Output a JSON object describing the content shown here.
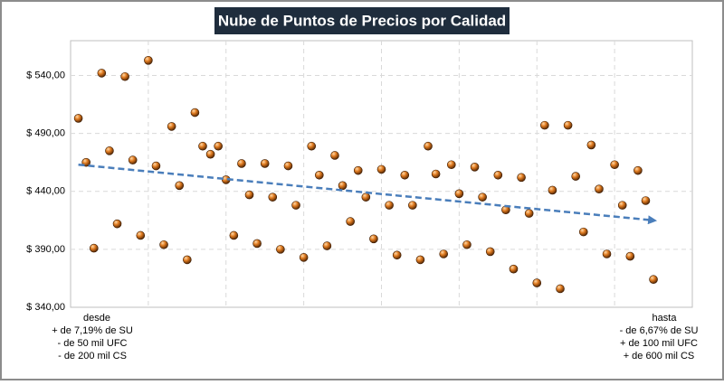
{
  "chart_data": {
    "type": "scatter",
    "title": "Nube de Puntos de Precios por Calidad",
    "x": [
      1,
      2,
      3,
      4,
      5,
      6,
      7,
      8,
      9,
      10,
      11,
      12,
      13,
      14,
      15,
      16,
      17,
      18,
      19,
      20,
      21,
      22,
      23,
      24,
      25,
      26,
      27,
      28,
      29,
      30,
      31,
      32,
      33,
      34,
      35,
      36,
      37,
      38,
      39,
      40,
      41,
      42,
      43,
      44,
      45,
      46,
      47,
      48,
      49,
      50,
      51,
      52,
      53,
      54,
      55,
      56,
      57,
      58,
      59,
      60,
      61,
      62,
      63,
      64,
      65,
      66,
      67,
      68,
      69,
      70,
      71,
      72,
      73,
      74,
      75
    ],
    "series": [
      {
        "color": "#e07b20",
        "values": [
          503,
          465,
          391,
          542,
          475,
          412,
          539,
          467,
          402,
          553,
          462,
          394,
          496,
          445,
          381,
          508,
          479,
          472,
          479,
          450,
          402,
          464,
          437,
          395,
          464,
          435,
          390,
          462,
          428,
          383,
          479,
          454,
          393,
          471,
          445,
          414,
          458,
          435,
          399,
          459,
          428,
          385,
          454,
          428,
          381,
          479,
          455,
          386,
          463,
          438,
          394,
          461,
          435,
          388,
          454,
          424,
          373,
          452,
          421,
          361,
          497,
          441,
          356,
          497,
          453,
          405,
          480,
          442,
          386,
          463,
          428,
          384,
          458,
          432,
          364
        ]
      }
    ],
    "trendline": {
      "x": [
        1,
        75
      ],
      "values": [
        463,
        415
      ],
      "color": "#4a7ebb"
    },
    "xlim": [
      0,
      80
    ],
    "xticks": [
      10,
      20,
      30,
      40,
      50,
      60,
      70
    ],
    "ylim": [
      340,
      570
    ],
    "yticks": [
      {
        "value": 340,
        "label": "$ 340,00"
      },
      {
        "value": 390,
        "label": "$ 390,00"
      },
      {
        "value": 440,
        "label": "$ 440,00"
      },
      {
        "value": 490,
        "label": "$ 490,00"
      },
      {
        "value": 540,
        "label": "$ 540,00"
      }
    ],
    "grid": true,
    "annotations": {
      "left": [
        "desde",
        "+ de 7,19% de SU",
        "- de 50 mil UFC",
        "- de 200 mil CS"
      ],
      "right": [
        "hasta",
        "- de 6,67% de SU",
        "+ de 100 mil UFC",
        "+ de 600 mil CS"
      ]
    }
  }
}
